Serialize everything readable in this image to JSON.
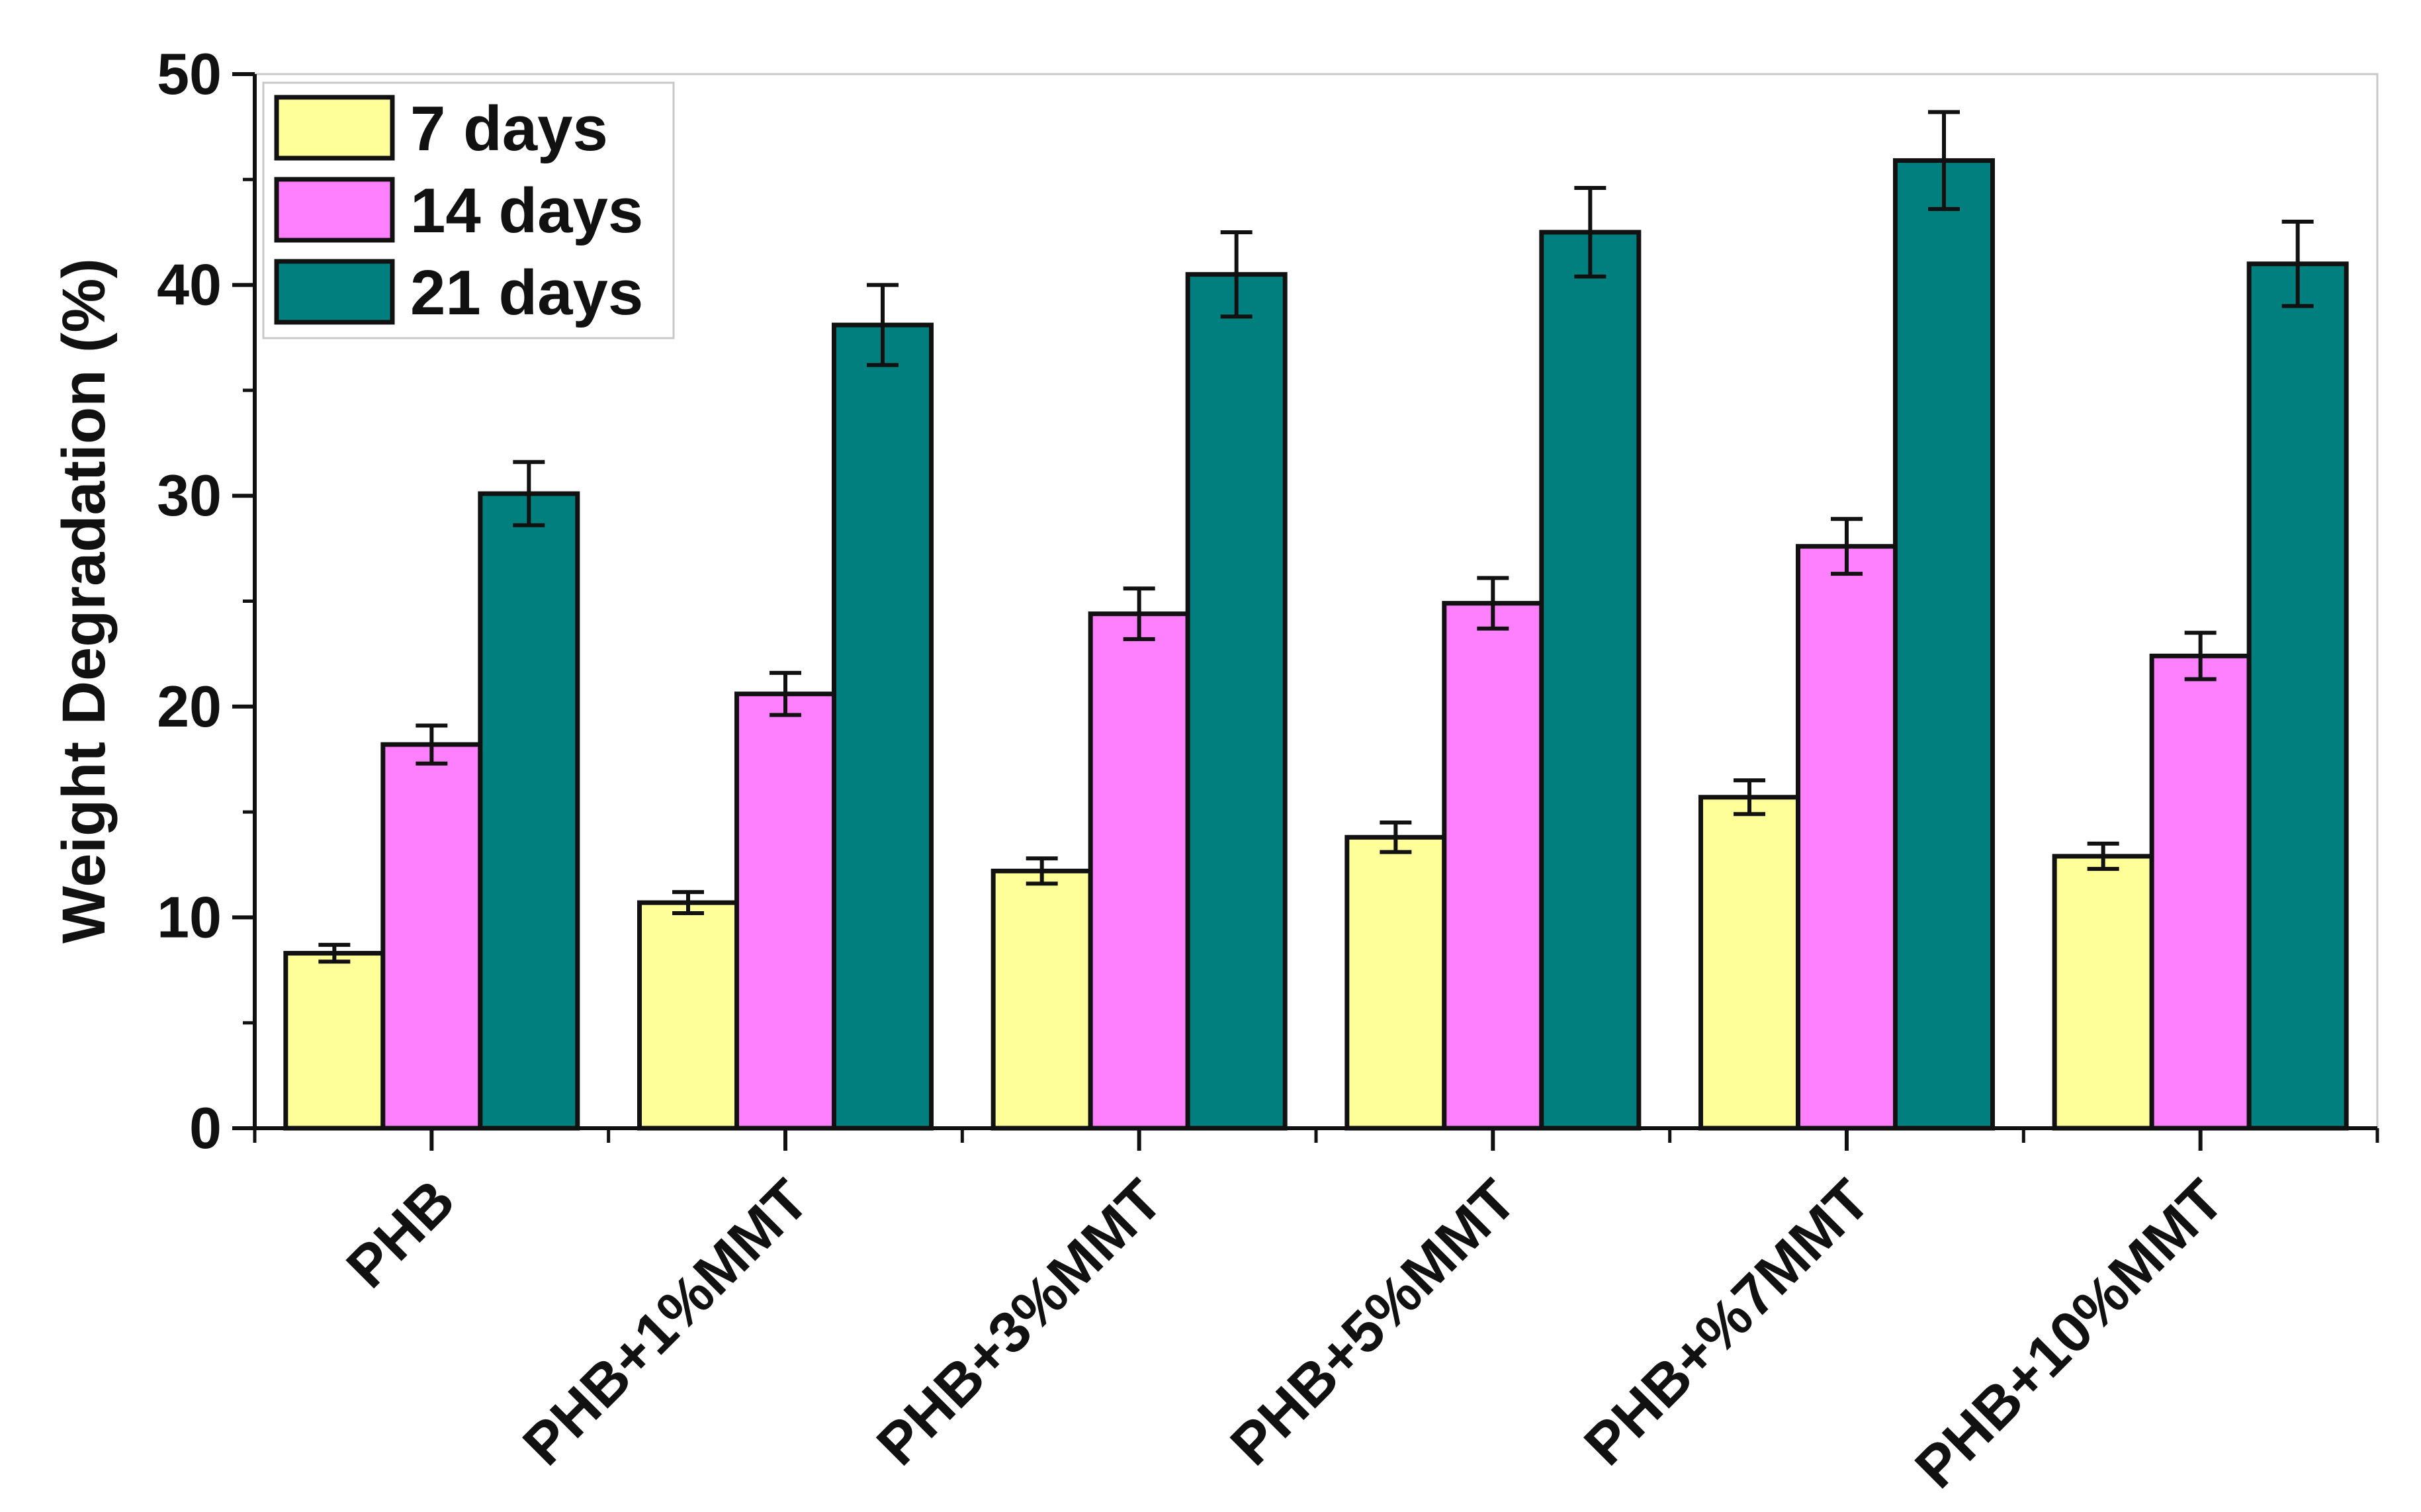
{
  "chart_data": {
    "type": "bar",
    "title": "",
    "xlabel": "",
    "ylabel": "Weight Degradation (%)",
    "ylim": [
      0,
      50
    ],
    "yticks": [
      0,
      10,
      20,
      30,
      40,
      50
    ],
    "grid": false,
    "legend_position": "top-left",
    "categories": [
      "PHB",
      "PHB+1%MMT",
      "PHB+3%MMT",
      "PHB+5%MMT",
      "PHB+%7MMT",
      "PHB+10%MMT"
    ],
    "series": [
      {
        "name": "7 days",
        "color": "#FFFF99",
        "values": [
          8.3,
          10.7,
          12.2,
          13.8,
          15.7,
          12.9
        ],
        "errors": [
          0.4,
          0.5,
          0.6,
          0.7,
          0.8,
          0.6
        ]
      },
      {
        "name": "14 days",
        "color": "#FF80FF",
        "values": [
          18.2,
          20.6,
          24.4,
          24.9,
          27.6,
          22.4
        ],
        "errors": [
          0.9,
          1.0,
          1.2,
          1.2,
          1.3,
          1.1
        ]
      },
      {
        "name": "21 days",
        "color": "#007F7F",
        "values": [
          30.1,
          38.1,
          40.5,
          42.5,
          45.9,
          41.0
        ],
        "errors": [
          1.5,
          1.9,
          2.0,
          2.1,
          2.3,
          2.0
        ]
      }
    ]
  }
}
